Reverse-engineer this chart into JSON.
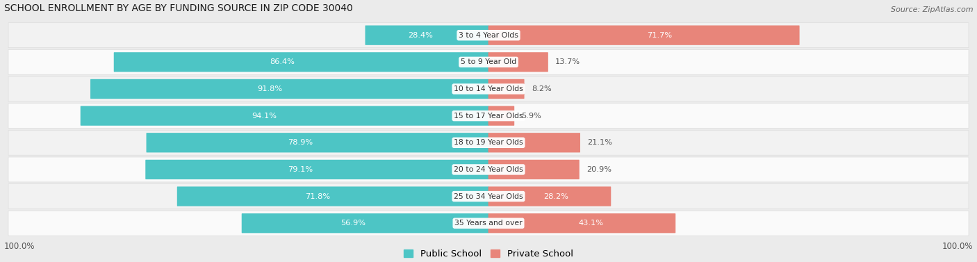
{
  "title": "SCHOOL ENROLLMENT BY AGE BY FUNDING SOURCE IN ZIP CODE 30040",
  "source": "Source: ZipAtlas.com",
  "categories": [
    "3 to 4 Year Olds",
    "5 to 9 Year Old",
    "10 to 14 Year Olds",
    "15 to 17 Year Olds",
    "18 to 19 Year Olds",
    "20 to 24 Year Olds",
    "25 to 34 Year Olds",
    "35 Years and over"
  ],
  "public_values": [
    28.4,
    86.4,
    91.8,
    94.1,
    78.9,
    79.1,
    71.8,
    56.9
  ],
  "private_values": [
    71.7,
    13.7,
    8.2,
    5.9,
    21.1,
    20.9,
    28.2,
    43.1
  ],
  "public_color": "#4DC5C5",
  "private_color": "#E8857A",
  "bg_color": "#EBEBEB",
  "row_bg_even": "#FAFAFA",
  "row_bg_odd": "#F2F2F2",
  "row_border": "#DDDDDD",
  "label_color": "#333333",
  "pub_inside_color": "#FFFFFF",
  "val_outside_color": "#555555",
  "left_axis_label": "100.0%",
  "right_axis_label": "100.0%",
  "legend_pub": "Public School",
  "legend_priv": "Private School"
}
